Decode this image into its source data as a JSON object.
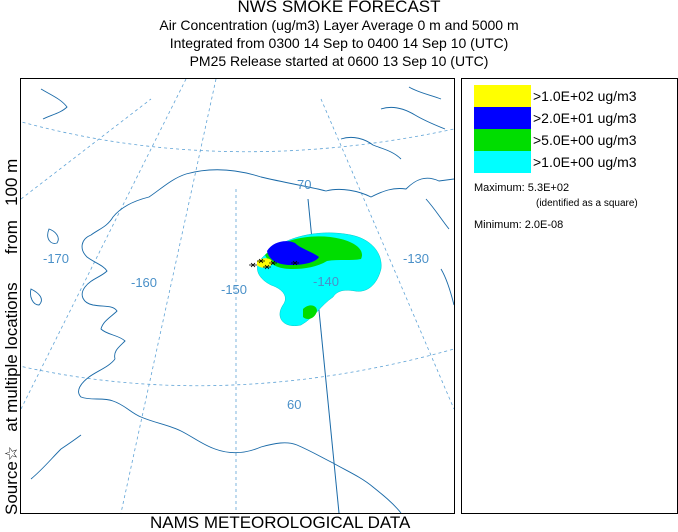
{
  "header": {
    "title": "NWS SMOKE FORECAST",
    "line1": "Air Concentration (ug/m3) Layer Average    0 m and  5000 m",
    "line2": "Integrated from 0300 14 Sep to 0400 14 Sep 10 (UTC)",
    "line3": "PM25 Release started at 0600 13 Sep 10 (UTC)"
  },
  "side_label": "Source☆   at multiple locations      from   100 m",
  "footer": "NAMS METEOROLOGICAL DATA",
  "map": {
    "grid_labels": {
      "lon_170": "-170",
      "lon_160": "-160",
      "lon_150": "-150",
      "lon_140": "-140",
      "lon_130": "-130",
      "lat_70": "70",
      "lat_60": "60"
    },
    "colors": {
      "coast": "#1a6aa8",
      "grid": "#5fa3d6",
      "level1": "#ffff00",
      "level2": "#0000ff",
      "level3": "#00dd00",
      "level4": "#00ffff"
    }
  },
  "legend": {
    "items": [
      {
        "label": ">1.0E+02 ug/m3",
        "color": "#ffff00"
      },
      {
        "label": ">2.0E+01 ug/m3",
        "color": "#0000ff"
      },
      {
        "label": ">5.0E+00 ug/m3",
        "color": "#00dd00"
      },
      {
        "label": ">1.0E+00 ug/m3",
        "color": "#00ffff"
      }
    ],
    "maximum": "Maximum: 5.3E+02",
    "maximum_note": "(identified as a square)",
    "minimum": "Minimum: 2.0E-08"
  }
}
